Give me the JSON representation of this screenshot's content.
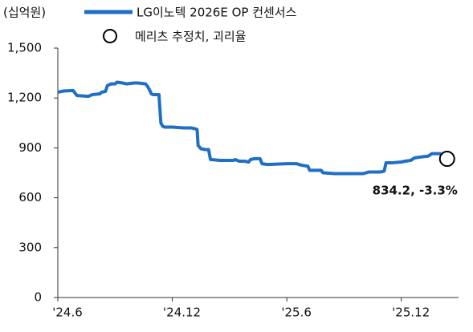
{
  "chart_data": {
    "type": "line",
    "unit_label": "(십억원)",
    "xlim": [
      0,
      21
    ],
    "xticks": [
      {
        "value": 0,
        "label": "'24.6"
      },
      {
        "value": 6,
        "label": "'24.12"
      },
      {
        "value": 12,
        "label": "'25.6"
      },
      {
        "value": 18,
        "label": "'25.12"
      }
    ],
    "ylim": [
      0,
      1500
    ],
    "yticks": [
      0,
      300,
      600,
      900,
      {
        "value": 1200,
        "label": "1,200"
      },
      {
        "value": 1500,
        "label": "1,500"
      }
    ],
    "series": [
      {
        "name": "LG이노텍 2026E OP 컨센서스",
        "color": "#1f6fc4",
        "x": [
          0,
          0.3,
          0.8,
          0.9,
          1.0,
          1.6,
          1.8,
          2.2,
          2.3,
          2.5,
          2.6,
          2.8,
          3.0,
          3.1,
          3.4,
          3.6,
          4.0,
          4.2,
          4.6,
          4.7,
          4.8,
          4.9,
          5.0,
          5.3,
          5.4,
          5.5,
          5.6,
          6.0,
          6.6,
          7.0,
          7.2,
          7.3,
          7.35,
          7.5,
          7.7,
          7.9,
          8.0,
          8.5,
          9.0,
          9.2,
          9.3,
          9.5,
          9.8,
          10.0,
          10.1,
          10.3,
          10.6,
          10.7,
          11.0,
          12.0,
          12.5,
          12.8,
          13.1,
          13.2,
          13.5,
          13.8,
          13.9,
          14.5,
          15.5,
          16.0,
          16.3,
          16.9,
          17.1,
          17.2,
          17.5,
          18.0,
          18.2,
          18.5,
          18.7,
          19.0,
          19.4,
          19.6,
          20.1
        ],
        "values": [
          1235,
          1242,
          1245,
          1230,
          1215,
          1210,
          1220,
          1225,
          1235,
          1240,
          1275,
          1285,
          1285,
          1295,
          1290,
          1285,
          1290,
          1290,
          1285,
          1270,
          1250,
          1225,
          1220,
          1220,
          1050,
          1030,
          1025,
          1025,
          1020,
          1020,
          1015,
          1010,
          915,
          895,
          890,
          890,
          830,
          825,
          825,
          825,
          830,
          820,
          820,
          815,
          830,
          835,
          835,
          805,
          800,
          805,
          805,
          795,
          790,
          765,
          765,
          765,
          750,
          745,
          745,
          745,
          755,
          755,
          760,
          810,
          810,
          815,
          820,
          825,
          840,
          845,
          850,
          865,
          865
        ]
      },
      {
        "name": "메리츠 추정치, 괴리율",
        "type": "scatter",
        "color": "#000000",
        "x": [
          20.4
        ],
        "values": [
          834.2
        ],
        "value_labels": [
          "834.2, -3.3%"
        ]
      }
    ]
  }
}
